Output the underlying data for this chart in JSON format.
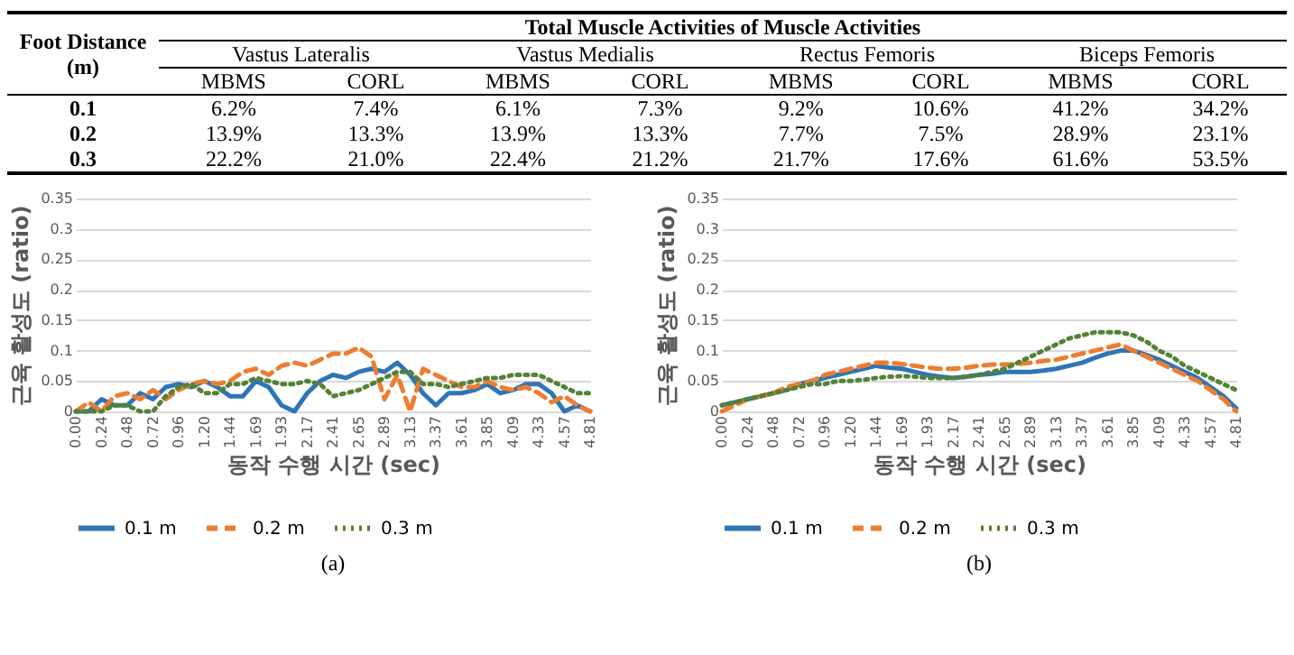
{
  "chart_data": [
    {
      "type": "other",
      "title": "Total Muscle Activities of Muscle Activities",
      "annotations": [
        "Foot Distance (m)",
        "Vastus Lateralis",
        "Vastus Medialis",
        "Rectus Femoris",
        "Biceps Femoris",
        "MBMS",
        "CORL",
        "MBMS",
        "CORL",
        "MBMS",
        "CORL",
        "MBMS",
        "CORL",
        "0.1",
        "6.2%",
        "7.4%",
        "6.1%",
        "7.3%",
        "9.2%",
        "10.6%",
        "41.2%",
        "34.2%",
        "0.2",
        "13.9%",
        "13.3%",
        "13.9%",
        "13.3%",
        "7.7%",
        "7.5%",
        "28.9%",
        "23.1%",
        "0.3",
        "22.2%",
        "21.0%",
        "22.4%",
        "21.2%",
        "21.7%",
        "17.6%",
        "61.6%",
        "53.5%"
      ]
    },
    {
      "type": "line",
      "xlabel": "동작 수행 시간 (sec)",
      "ylabel": "근육 활성도 (ratio)",
      "annotations": [
        "(a)"
      ],
      "categories": [
        "0.00",
        null,
        "0.24",
        null,
        "0.48",
        null,
        "0.72",
        null,
        "0.96",
        null,
        "1.20",
        null,
        "1.44",
        null,
        "1.69",
        null,
        "1.93",
        null,
        "2.17",
        null,
        "2.41",
        null,
        "2.65",
        null,
        "2.89",
        null,
        "3.13",
        null,
        "3.37",
        null,
        "3.61",
        null,
        "3.85",
        null,
        "4.09",
        null,
        "4.33",
        null,
        "4.57",
        null,
        "4.81"
      ],
      "ylim": [
        0,
        0.35
      ],
      "yticks": [
        0,
        0.05,
        0.1,
        0.15,
        0.2,
        0.25,
        0.3,
        0.35
      ],
      "grid": "y",
      "legend": "bottom",
      "series": [
        {
          "name": "0.1 m",
          "color": "#2e75b6",
          "line_style": "solid",
          "values": [
            0,
            0,
            0.02,
            0.01,
            0.01,
            0.03,
            0.02,
            0.04,
            0.045,
            0.04,
            0.05,
            0.04,
            0.025,
            0.025,
            0.05,
            0.04,
            0.01,
            0,
            0.03,
            0.05,
            0.06,
            0.055,
            0.065,
            0.07,
            0.065,
            0.08,
            0.06,
            0.03,
            0.01,
            0.03,
            0.03,
            0.035,
            0.045,
            0.03,
            0.035,
            0.045,
            0.045,
            0.03,
            0,
            0.01,
            0
          ]
        },
        {
          "name": "0.2 m",
          "color": "#ed7d31",
          "line_style": "dashed",
          "values": [
            0,
            0.015,
            0,
            0.025,
            0.03,
            0.02,
            0.035,
            0.02,
            0.035,
            0.045,
            0.05,
            0.045,
            0.05,
            0.065,
            0.07,
            0.06,
            0.075,
            0.08,
            0.075,
            0.085,
            0.095,
            0.095,
            0.105,
            0.09,
            0.02,
            0.06,
            0,
            0.07,
            0.06,
            0.05,
            0.04,
            0.04,
            0.05,
            0.04,
            0.035,
            0.04,
            0.03,
            0.015,
            0.025,
            0.01,
            0
          ]
        },
        {
          "name": "0.3 m",
          "color": "#548235",
          "line_style": "dotted",
          "values": [
            0,
            0,
            0,
            0.01,
            0.01,
            0,
            0,
            0.025,
            0.04,
            0.045,
            0.03,
            0.03,
            0.045,
            0.045,
            0.055,
            0.05,
            0.045,
            0.045,
            0.05,
            0.045,
            0.025,
            0.03,
            0.035,
            0.045,
            0.055,
            0.065,
            0.065,
            0.045,
            0.045,
            0.04,
            0.045,
            0.05,
            0.055,
            0.055,
            0.06,
            0.06,
            0.06,
            0.05,
            0.04,
            0.03,
            0.03
          ]
        }
      ]
    },
    {
      "type": "line",
      "xlabel": "동작 수행 시간 (sec)",
      "ylabel": "근육 활성도 (ratio)",
      "annotations": [
        "(b)"
      ],
      "categories": [
        "0.00",
        null,
        "0.24",
        null,
        "0.48",
        null,
        "0.72",
        null,
        "0.96",
        null,
        "1.20",
        null,
        "1.44",
        null,
        "1.69",
        null,
        "1.93",
        null,
        "2.17",
        null,
        "2.41",
        null,
        "2.65",
        null,
        "2.89",
        null,
        "3.13",
        null,
        "3.37",
        null,
        "3.61",
        null,
        "3.85",
        null,
        "4.09",
        null,
        "4.33",
        null,
        "4.57",
        null,
        "4.81"
      ],
      "ylim": [
        0,
        0.35
      ],
      "yticks": [
        0,
        0.05,
        0.1,
        0.15,
        0.2,
        0.25,
        0.3,
        0.35
      ],
      "grid": "y",
      "legend": "bottom",
      "series": [
        {
          "name": "0.1 m",
          "color": "#2e75b6",
          "line_style": "solid",
          "values": [
            0.01,
            0.015,
            0.02,
            0.025,
            0.03,
            0.035,
            0.045,
            0.05,
            0.055,
            0.06,
            0.065,
            0.07,
            0.075,
            0.072,
            0.07,
            0.065,
            0.06,
            0.057,
            0.055,
            0.057,
            0.06,
            0.062,
            0.065,
            0.065,
            0.065,
            0.067,
            0.07,
            0.075,
            0.08,
            0.088,
            0.095,
            0.1,
            0.1,
            0.093,
            0.085,
            0.075,
            0.065,
            0.055,
            0.04,
            0.025,
            0.005
          ]
        },
        {
          "name": "0.2 m",
          "color": "#ed7d31",
          "line_style": "dashed",
          "values": [
            0,
            0.01,
            0.02,
            0.025,
            0.03,
            0.04,
            0.045,
            0.05,
            0.06,
            0.065,
            0.07,
            0.075,
            0.08,
            0.08,
            0.078,
            0.075,
            0.072,
            0.07,
            0.07,
            0.072,
            0.075,
            0.077,
            0.077,
            0.078,
            0.08,
            0.083,
            0.085,
            0.09,
            0.095,
            0.1,
            0.105,
            0.11,
            0.1,
            0.09,
            0.08,
            0.07,
            0.06,
            0.05,
            0.035,
            0.02,
            0
          ]
        },
        {
          "name": "0.3 m",
          "color": "#548235",
          "line_style": "dotted",
          "values": [
            0.01,
            0.015,
            0.02,
            0.025,
            0.03,
            0.035,
            0.04,
            0.045,
            0.045,
            0.05,
            0.05,
            0.052,
            0.055,
            0.057,
            0.058,
            0.057,
            0.055,
            0.055,
            0.055,
            0.057,
            0.06,
            0.065,
            0.07,
            0.08,
            0.09,
            0.1,
            0.11,
            0.12,
            0.125,
            0.13,
            0.13,
            0.13,
            0.125,
            0.115,
            0.1,
            0.09,
            0.075,
            0.065,
            0.055,
            0.045,
            0.035
          ]
        }
      ]
    }
  ]
}
